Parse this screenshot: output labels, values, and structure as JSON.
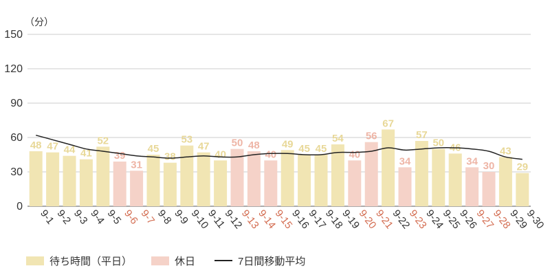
{
  "colors": {
    "weekday_bar": "#F1E5B3",
    "holiday_bar": "#F5D2C8",
    "weekday_label": "#E8D898",
    "holiday_label": "#EEB5A6",
    "weekday_tick": "#333333",
    "holiday_tick": "#D36C50",
    "line": "#222222",
    "grid": "#CCCCCC"
  },
  "legend": {
    "weekday": "待ち時間（平日）",
    "holiday": "休日",
    "ma": "7日間移動平均"
  },
  "chart_data": {
    "type": "bar",
    "unit": "（分）",
    "ylim": [
      0,
      150
    ],
    "yticks": [
      0,
      30,
      60,
      90,
      120,
      150
    ],
    "grid": true,
    "legend_position": "bottom-left",
    "categories": [
      "9-1",
      "9-2",
      "9-3",
      "9-4",
      "9-5",
      "9-6",
      "9-7",
      "9-8",
      "9-9",
      "9-10",
      "9-11",
      "9-12",
      "9-13",
      "9-14",
      "9-15",
      "9-16",
      "9-17",
      "9-18",
      "9-19",
      "9-20",
      "9-21",
      "9-22",
      "9-23",
      "9-24",
      "9-25",
      "9-26",
      "9-27",
      "9-28",
      "9-29",
      "9-30"
    ],
    "values": [
      48,
      47,
      44,
      41,
      52,
      39,
      31,
      45,
      38,
      53,
      47,
      40,
      50,
      48,
      40,
      49,
      45,
      45,
      54,
      40,
      56,
      67,
      34,
      57,
      50,
      46,
      34,
      30,
      43,
      29
    ],
    "holiday": [
      false,
      false,
      false,
      false,
      false,
      true,
      true,
      false,
      false,
      false,
      false,
      false,
      true,
      true,
      true,
      false,
      false,
      false,
      false,
      true,
      true,
      false,
      true,
      false,
      false,
      false,
      true,
      true,
      false,
      false
    ],
    "series": [
      {
        "type": "line",
        "values": [
          62,
          58,
          54,
          50,
          48,
          46,
          44,
          43,
          42,
          43,
          44,
          43,
          43,
          45,
          46,
          46,
          45,
          45,
          47,
          47,
          48,
          51,
          49,
          50,
          51,
          51,
          50,
          48,
          43,
          41
        ]
      }
    ]
  }
}
